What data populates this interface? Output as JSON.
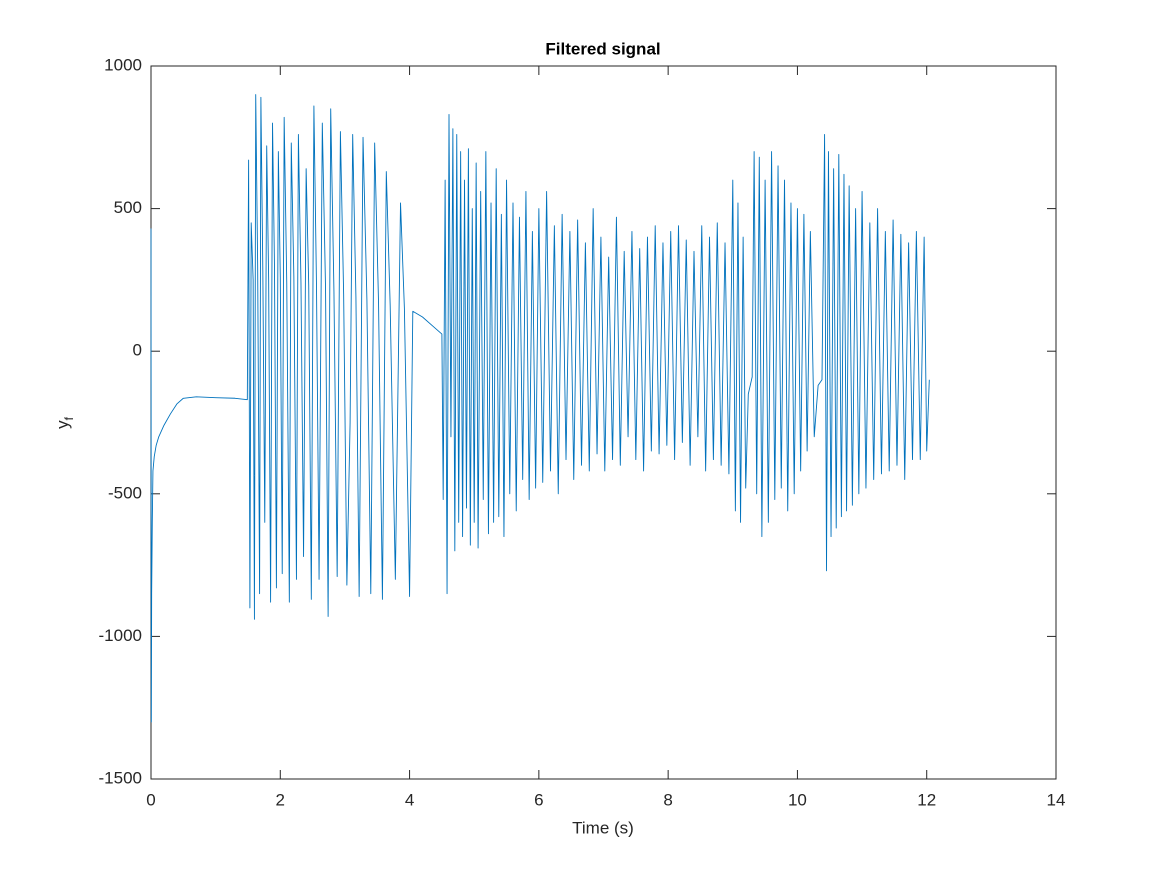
{
  "chart_data": {
    "type": "line",
    "title": "Filtered signal",
    "xlabel": "Time (s)",
    "ylabel": "y",
    "ylabel_subscript": "f",
    "color": "#0072bd",
    "grid": false,
    "xlim": [
      0,
      14
    ],
    "xticks": [
      0,
      2,
      4,
      6,
      8,
      10,
      12,
      14
    ],
    "ylim": [
      -1500,
      1000
    ],
    "yticks": [
      -1500,
      -1000,
      -500,
      0,
      500,
      1000
    ],
    "x": [
      0,
      0.005,
      0.01,
      0.02,
      0.03,
      0.05,
      0.08,
      0.12,
      0.2,
      0.3,
      0.4,
      0.5,
      0.7,
      1.0,
      1.3,
      1.49,
      1.51,
      1.53,
      1.55,
      1.58,
      1.6,
      1.62,
      1.65,
      1.68,
      1.7,
      1.73,
      1.76,
      1.79,
      1.82,
      1.85,
      1.88,
      1.91,
      1.94,
      1.97,
      2.0,
      2.03,
      2.06,
      2.1,
      2.14,
      2.17,
      2.21,
      2.25,
      2.28,
      2.32,
      2.36,
      2.4,
      2.44,
      2.48,
      2.52,
      2.56,
      2.6,
      2.65,
      2.7,
      2.74,
      2.78,
      2.83,
      2.88,
      2.93,
      2.98,
      3.03,
      3.08,
      3.12,
      3.17,
      3.22,
      3.28,
      3.34,
      3.4,
      3.46,
      3.52,
      3.58,
      3.64,
      3.7,
      3.78,
      3.86,
      3.92,
      4.0,
      4.05,
      4.2,
      4.35,
      4.5,
      4.52,
      4.55,
      4.58,
      4.61,
      4.64,
      4.67,
      4.7,
      4.73,
      4.76,
      4.79,
      4.82,
      4.85,
      4.88,
      4.91,
      4.94,
      4.97,
      5.0,
      5.03,
      5.06,
      5.1,
      5.14,
      5.18,
      5.22,
      5.26,
      5.3,
      5.34,
      5.38,
      5.42,
      5.46,
      5.5,
      5.55,
      5.6,
      5.65,
      5.7,
      5.75,
      5.8,
      5.85,
      5.9,
      5.95,
      6.0,
      6.06,
      6.12,
      6.18,
      6.24,
      6.3,
      6.36,
      6.42,
      6.48,
      6.54,
      6.6,
      6.66,
      6.72,
      6.78,
      6.84,
      6.9,
      6.96,
      7.02,
      7.08,
      7.14,
      7.2,
      7.26,
      7.32,
      7.38,
      7.44,
      7.5,
      7.56,
      7.62,
      7.68,
      7.74,
      7.8,
      7.86,
      7.92,
      7.98,
      8.04,
      8.1,
      8.16,
      8.22,
      8.28,
      8.34,
      8.4,
      8.46,
      8.52,
      8.58,
      8.64,
      8.7,
      8.76,
      8.82,
      8.88,
      8.94,
      9.0,
      9.04,
      9.08,
      9.12,
      9.16,
      9.2,
      9.24,
      9.3,
      9.33,
      9.37,
      9.41,
      9.45,
      9.5,
      9.55,
      9.6,
      9.65,
      9.7,
      9.75,
      9.8,
      9.85,
      9.9,
      9.95,
      10.0,
      10.05,
      10.1,
      10.15,
      10.2,
      10.26,
      10.32,
      10.38,
      10.42,
      10.45,
      10.48,
      10.52,
      10.56,
      10.6,
      10.64,
      10.68,
      10.72,
      10.76,
      10.8,
      10.85,
      10.9,
      10.95,
      11.0,
      11.06,
      11.12,
      11.18,
      11.24,
      11.3,
      11.36,
      11.42,
      11.48,
      11.54,
      11.6,
      11.66,
      11.72,
      11.78,
      11.84,
      11.9,
      11.96,
      12.0,
      12.04
    ],
    "y": [
      430,
      -1300,
      -850,
      -600,
      -420,
      -370,
      -330,
      -300,
      -260,
      -220,
      -185,
      -165,
      -160,
      -163,
      -165,
      -170,
      670,
      -900,
      450,
      250,
      -940,
      900,
      300,
      -850,
      890,
      280,
      -600,
      720,
      250,
      -880,
      800,
      300,
      -830,
      700,
      260,
      -780,
      820,
      240,
      -880,
      730,
      260,
      -800,
      760,
      240,
      -720,
      640,
      230,
      -870,
      860,
      230,
      -800,
      800,
      220,
      -930,
      850,
      210,
      -790,
      770,
      200,
      -820,
      -250,
      760,
      190,
      -860,
      750,
      180,
      -850,
      730,
      170,
      -870,
      630,
      160,
      -800,
      520,
      150,
      -860,
      140,
      120,
      90,
      60,
      -520,
      600,
      -850,
      830,
      -300,
      780,
      -700,
      760,
      -600,
      700,
      -650,
      600,
      -550,
      710,
      -680,
      500,
      -600,
      660,
      -690,
      560,
      -520,
      700,
      -640,
      520,
      -600,
      640,
      -580,
      480,
      -650,
      600,
      -500,
      520,
      -560,
      470,
      -450,
      560,
      -520,
      420,
      -480,
      500,
      -460,
      560,
      -420,
      440,
      -500,
      480,
      -380,
      420,
      -450,
      460,
      -400,
      380,
      -420,
      500,
      -360,
      400,
      -420,
      330,
      -380,
      470,
      -400,
      350,
      -300,
      420,
      -380,
      360,
      -420,
      400,
      -350,
      440,
      -360,
      380,
      -330,
      420,
      -380,
      440,
      -320,
      390,
      -400,
      350,
      -300,
      440,
      -420,
      400,
      -380,
      450,
      -400,
      380,
      -430,
      600,
      -560,
      520,
      -600,
      400,
      -480,
      -150,
      -90,
      700,
      -500,
      680,
      -650,
      600,
      -600,
      700,
      -520,
      650,
      -480,
      600,
      -560,
      520,
      -500,
      500,
      -420,
      480,
      -350,
      420,
      -300,
      -120,
      -100,
      760,
      -770,
      700,
      -650,
      640,
      -620,
      690,
      -580,
      620,
      -560,
      580,
      -540,
      500,
      -500,
      560,
      -480,
      450,
      -450,
      500,
      -430,
      420,
      -420,
      460,
      -400,
      410,
      -450,
      380,
      -380,
      420,
      -380,
      400,
      -350,
      -100
    ]
  }
}
